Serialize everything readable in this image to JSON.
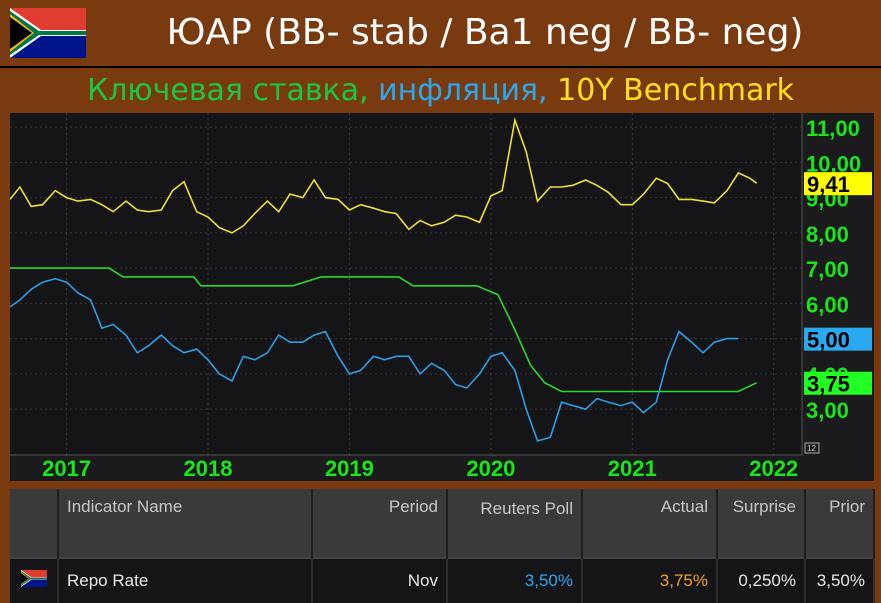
{
  "header": {
    "title": "ЮАР (BB- stab / Ba1 neg / BB- neg)"
  },
  "subtitle": {
    "part1": "Ключевая ставка, ",
    "part2": "инфляция, ",
    "part3": "10Y Benchmark"
  },
  "colors": {
    "rate": "#2ad82a",
    "inflation": "#2a9ee8",
    "bond": "#f0e030",
    "background": "#7a3a10",
    "plot": "#151517"
  },
  "chart_data": {
    "type": "line",
    "ylim": [
      1.7,
      11.4
    ],
    "y_ticks": [
      "3,00",
      "4,00",
      "5,00",
      "6,00",
      "7,00",
      "8,00",
      "9,00",
      "10,00",
      "11,00"
    ],
    "y_tick_values": [
      3,
      4,
      5,
      6,
      7,
      8,
      9,
      10,
      11
    ],
    "xlim": [
      2016.6,
      2022.2
    ],
    "x_ticks": [
      "2017",
      "2018",
      "2019",
      "2020",
      "2021",
      "2022"
    ],
    "x_tick_values": [
      2017,
      2018,
      2019,
      2020,
      2021,
      2022
    ],
    "corner_label": "12",
    "series": [
      {
        "key": "bond",
        "color": "#f0e030",
        "last_label": "9,41",
        "points": [
          [
            2016.6,
            8.95
          ],
          [
            2016.67,
            9.3
          ],
          [
            2016.75,
            8.75
          ],
          [
            2016.83,
            8.8
          ],
          [
            2016.92,
            9.2
          ],
          [
            2017.0,
            9.0
          ],
          [
            2017.08,
            8.9
          ],
          [
            2017.17,
            8.95
          ],
          [
            2017.25,
            8.8
          ],
          [
            2017.33,
            8.6
          ],
          [
            2017.42,
            8.9
          ],
          [
            2017.5,
            8.65
          ],
          [
            2017.58,
            8.6
          ],
          [
            2017.67,
            8.65
          ],
          [
            2017.75,
            9.2
          ],
          [
            2017.83,
            9.45
          ],
          [
            2017.92,
            8.6
          ],
          [
            2018.0,
            8.45
          ],
          [
            2018.08,
            8.15
          ],
          [
            2018.17,
            8.0
          ],
          [
            2018.25,
            8.2
          ],
          [
            2018.33,
            8.55
          ],
          [
            2018.42,
            8.9
          ],
          [
            2018.5,
            8.6
          ],
          [
            2018.58,
            9.1
          ],
          [
            2018.67,
            9.0
          ],
          [
            2018.75,
            9.5
          ],
          [
            2018.83,
            9.0
          ],
          [
            2018.92,
            8.95
          ],
          [
            2019.0,
            8.65
          ],
          [
            2019.08,
            8.8
          ],
          [
            2019.17,
            8.7
          ],
          [
            2019.25,
            8.6
          ],
          [
            2019.33,
            8.55
          ],
          [
            2019.42,
            8.1
          ],
          [
            2019.5,
            8.35
          ],
          [
            2019.58,
            8.2
          ],
          [
            2019.67,
            8.3
          ],
          [
            2019.75,
            8.5
          ],
          [
            2019.83,
            8.45
          ],
          [
            2019.92,
            8.3
          ],
          [
            2020.0,
            9.05
          ],
          [
            2020.08,
            9.2
          ],
          [
            2020.17,
            11.2
          ],
          [
            2020.25,
            10.3
          ],
          [
            2020.33,
            8.9
          ],
          [
            2020.42,
            9.3
          ],
          [
            2020.5,
            9.3
          ],
          [
            2020.58,
            9.35
          ],
          [
            2020.67,
            9.5
          ],
          [
            2020.75,
            9.35
          ],
          [
            2020.83,
            9.15
          ],
          [
            2020.92,
            8.8
          ],
          [
            2021.0,
            8.8
          ],
          [
            2021.08,
            9.1
          ],
          [
            2021.17,
            9.55
          ],
          [
            2021.25,
            9.4
          ],
          [
            2021.33,
            8.95
          ],
          [
            2021.42,
            8.95
          ],
          [
            2021.5,
            8.9
          ],
          [
            2021.58,
            8.85
          ],
          [
            2021.67,
            9.2
          ],
          [
            2021.75,
            9.7
          ],
          [
            2021.83,
            9.55
          ],
          [
            2021.88,
            9.41
          ]
        ]
      },
      {
        "key": "rate",
        "color": "#2ad82a",
        "last_label": "3,75",
        "points": [
          [
            2016.6,
            7.0
          ],
          [
            2017.3,
            7.0
          ],
          [
            2017.4,
            6.75
          ],
          [
            2017.9,
            6.75
          ],
          [
            2017.95,
            6.5
          ],
          [
            2018.6,
            6.5
          ],
          [
            2018.8,
            6.75
          ],
          [
            2019.35,
            6.75
          ],
          [
            2019.45,
            6.5
          ],
          [
            2019.9,
            6.5
          ],
          [
            2020.05,
            6.25
          ],
          [
            2020.17,
            5.25
          ],
          [
            2020.28,
            4.25
          ],
          [
            2020.38,
            3.75
          ],
          [
            2020.5,
            3.5
          ],
          [
            2021.75,
            3.5
          ],
          [
            2021.88,
            3.75
          ]
        ]
      },
      {
        "key": "inflation",
        "color": "#2a9ee8",
        "last_label": "5,00",
        "points": [
          [
            2016.6,
            5.9
          ],
          [
            2016.67,
            6.1
          ],
          [
            2016.75,
            6.4
          ],
          [
            2016.83,
            6.6
          ],
          [
            2016.92,
            6.7
          ],
          [
            2017.0,
            6.6
          ],
          [
            2017.08,
            6.3
          ],
          [
            2017.17,
            6.1
          ],
          [
            2017.25,
            5.3
          ],
          [
            2017.33,
            5.4
          ],
          [
            2017.42,
            5.1
          ],
          [
            2017.5,
            4.6
          ],
          [
            2017.58,
            4.8
          ],
          [
            2017.67,
            5.1
          ],
          [
            2017.75,
            4.8
          ],
          [
            2017.83,
            4.6
          ],
          [
            2017.92,
            4.7
          ],
          [
            2018.0,
            4.4
          ],
          [
            2018.08,
            4.0
          ],
          [
            2018.17,
            3.8
          ],
          [
            2018.25,
            4.5
          ],
          [
            2018.33,
            4.4
          ],
          [
            2018.42,
            4.6
          ],
          [
            2018.5,
            5.1
          ],
          [
            2018.58,
            4.9
          ],
          [
            2018.67,
            4.9
          ],
          [
            2018.75,
            5.1
          ],
          [
            2018.83,
            5.2
          ],
          [
            2018.92,
            4.5
          ],
          [
            2019.0,
            4.0
          ],
          [
            2019.08,
            4.1
          ],
          [
            2019.17,
            4.5
          ],
          [
            2019.25,
            4.4
          ],
          [
            2019.33,
            4.5
          ],
          [
            2019.42,
            4.5
          ],
          [
            2019.5,
            4.0
          ],
          [
            2019.58,
            4.3
          ],
          [
            2019.67,
            4.1
          ],
          [
            2019.75,
            3.7
          ],
          [
            2019.83,
            3.6
          ],
          [
            2019.92,
            4.0
          ],
          [
            2020.0,
            4.5
          ],
          [
            2020.08,
            4.6
          ],
          [
            2020.17,
            4.1
          ],
          [
            2020.25,
            3.0
          ],
          [
            2020.33,
            2.1
          ],
          [
            2020.42,
            2.2
          ],
          [
            2020.5,
            3.2
          ],
          [
            2020.58,
            3.1
          ],
          [
            2020.67,
            3.0
          ],
          [
            2020.75,
            3.3
          ],
          [
            2020.83,
            3.2
          ],
          [
            2020.92,
            3.1
          ],
          [
            2021.0,
            3.2
          ],
          [
            2021.08,
            2.9
          ],
          [
            2021.17,
            3.2
          ],
          [
            2021.25,
            4.4
          ],
          [
            2021.33,
            5.2
          ],
          [
            2021.42,
            4.9
          ],
          [
            2021.5,
            4.6
          ],
          [
            2021.58,
            4.9
          ],
          [
            2021.67,
            5.0
          ],
          [
            2021.75,
            5.0
          ]
        ]
      }
    ]
  },
  "table": {
    "headers": {
      "indicator": "Indicator Name",
      "period": "Period",
      "poll": "Reuters Poll",
      "actual": "Actual",
      "surprise": "Surprise",
      "prior": "Prior"
    },
    "row": {
      "name": "Repo Rate",
      "period": "Nov",
      "poll": "3,50%",
      "actual": "3,75%",
      "surprise": "0,250%",
      "prior": "3,50%"
    }
  }
}
